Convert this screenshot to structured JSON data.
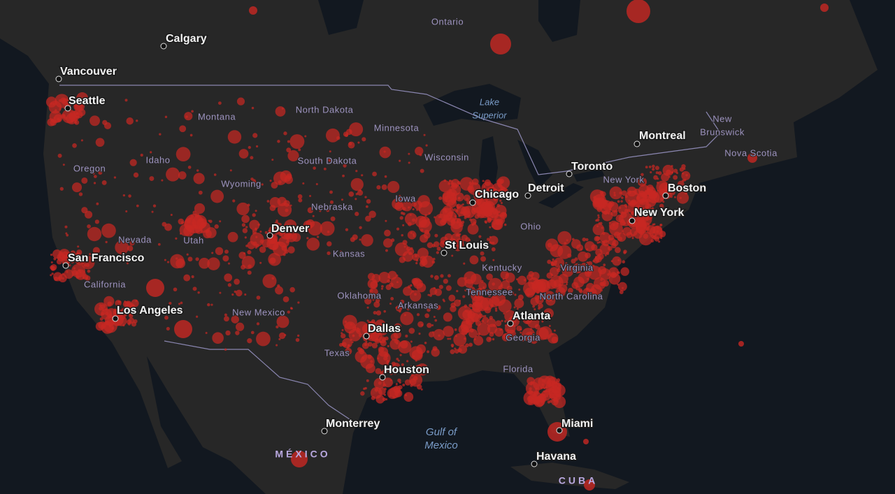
{
  "cities": [
    "Calgary",
    "Vancouver",
    "Seattle",
    "Montreal",
    "Toronto",
    "Chicago",
    "Detroit",
    "New York",
    "Boston",
    "St Louis",
    "Denver",
    "San Francisco",
    "Los Angeles",
    "Dallas",
    "Houston",
    "Atlanta",
    "Miami",
    "Havana",
    "Monterrey"
  ],
  "regions": [
    "Ontario",
    "North Dakota",
    "Montana",
    "Minnesota",
    "Wisconsin",
    "Oregon",
    "Idaho",
    "South Dakota",
    "Wyoming",
    "Nebraska",
    "Iowa",
    "Nevada",
    "Utah",
    "Ohio",
    "Kansas",
    "Kentucky",
    "Virginia",
    "California",
    "Oklahoma",
    "Arkansas",
    "Tennessee",
    "North Carolina",
    "New Mexico",
    "Georgia",
    "Texas",
    "Florida",
    "New York",
    "Nova Scotia",
    [
      "New",
      "Brunswick"
    ]
  ],
  "water": [
    [
      "Lake",
      "Superior"
    ],
    [
      "Gulf of",
      "Mexico"
    ]
  ],
  "countries": [
    "MÉXICO",
    "CUBA"
  ]
}
